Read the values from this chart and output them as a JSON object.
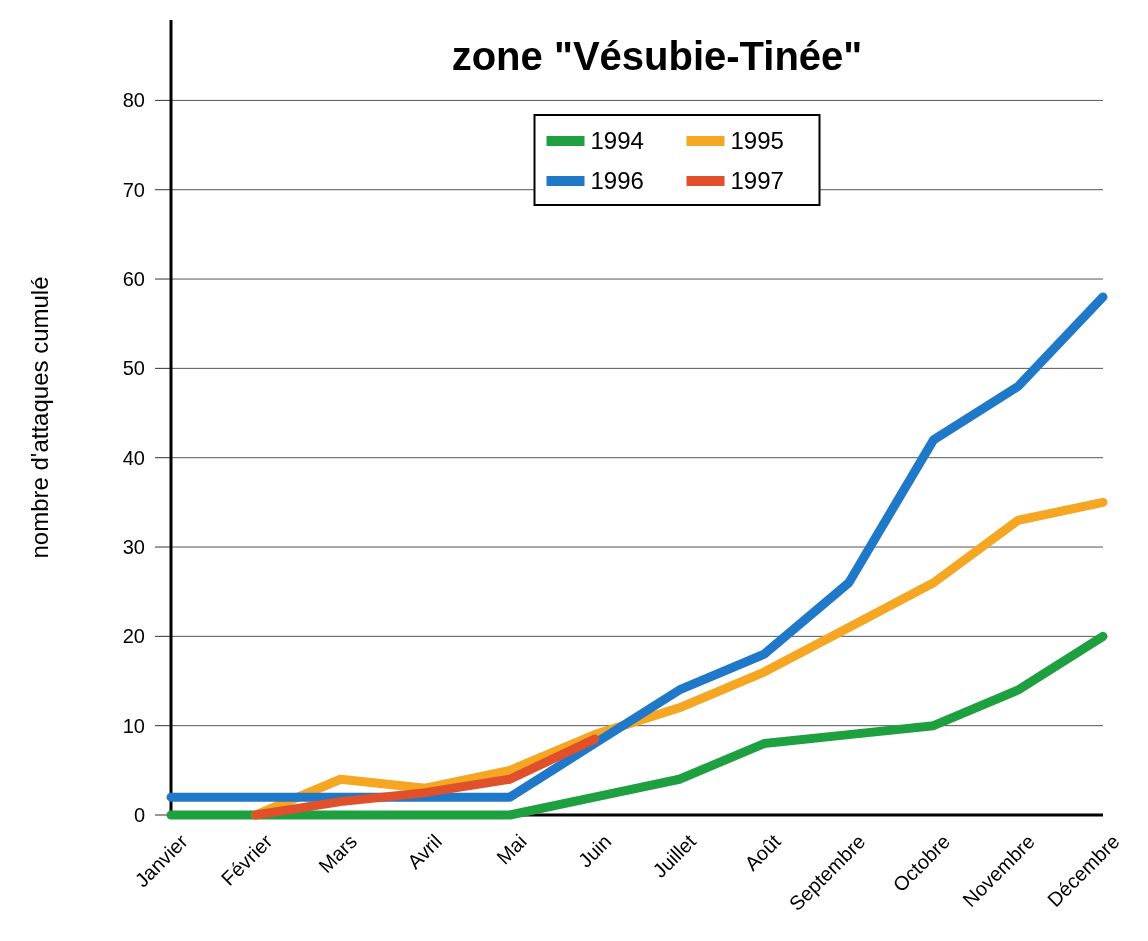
{
  "chart_data": {
    "type": "line",
    "title": "zone \"Vésubie-Tinée\"",
    "ylabel": "nombre d'attaques cumulé",
    "categories": [
      "Janvier",
      "Février",
      "Mars",
      "Avril",
      "Mai",
      "Juin",
      "Juillet",
      "Août",
      "Septembre",
      "Octobre",
      "Novembre",
      "Décembre"
    ],
    "series": [
      {
        "name": "1994",
        "color": "#1fa040",
        "values": [
          0,
          0,
          0,
          0,
          0,
          2,
          4,
          8,
          9,
          10,
          14,
          20
        ]
      },
      {
        "name": "1995",
        "color": "#f5a623",
        "values": [
          null,
          0,
          4,
          3,
          5,
          9,
          12,
          16,
          21,
          26,
          33,
          35
        ]
      },
      {
        "name": "1996",
        "color": "#1f78c8",
        "values": [
          2,
          2,
          2,
          2,
          2,
          8,
          14,
          18,
          26,
          42,
          48,
          58
        ]
      },
      {
        "name": "1997",
        "color": "#e0502a",
        "values": [
          null,
          0,
          1.5,
          2.5,
          4,
          8.5,
          null,
          null,
          null,
          null,
          null,
          null
        ]
      }
    ],
    "ylim": [
      0,
      89
    ],
    "yticks": [
      0,
      10,
      20,
      30,
      40,
      50,
      60,
      70,
      80
    ],
    "grid": "y",
    "legend": "top",
    "marker": "none",
    "line_style": "solid"
  }
}
